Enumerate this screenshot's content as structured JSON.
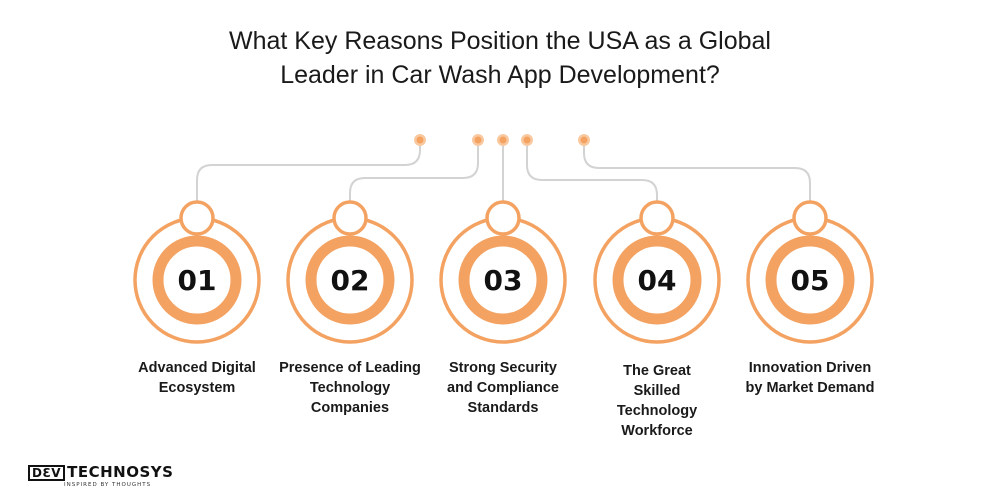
{
  "title": {
    "line1": "What Key Reasons Position the USA as a Global",
    "line2": "Leader in Car Wash App Development?"
  },
  "colors": {
    "accent": "#F4A261",
    "ring": "#F4A261",
    "connector": "#D0D0D0",
    "text": "#111111",
    "background": "#FFFFFF"
  },
  "reasons": [
    {
      "number": "01",
      "label_lines": [
        "Advanced Digital",
        "Ecosystem"
      ]
    },
    {
      "number": "02",
      "label_lines": [
        "Presence of Leading",
        "Technology",
        "Companies"
      ]
    },
    {
      "number": "03",
      "label_lines": [
        "Strong Security",
        "and Compliance",
        "Standards"
      ]
    },
    {
      "number": "04",
      "label_lines": [
        "The Great",
        "Skilled",
        "Technology",
        "Workforce"
      ]
    },
    {
      "number": "05",
      "label_lines": [
        "Innovation Driven",
        "by Market Demand"
      ]
    }
  ],
  "logo": {
    "box_text": "DƐV",
    "main_text": "TECHNOSYS",
    "tagline": "INSPIRED BY THOUGHTS"
  }
}
